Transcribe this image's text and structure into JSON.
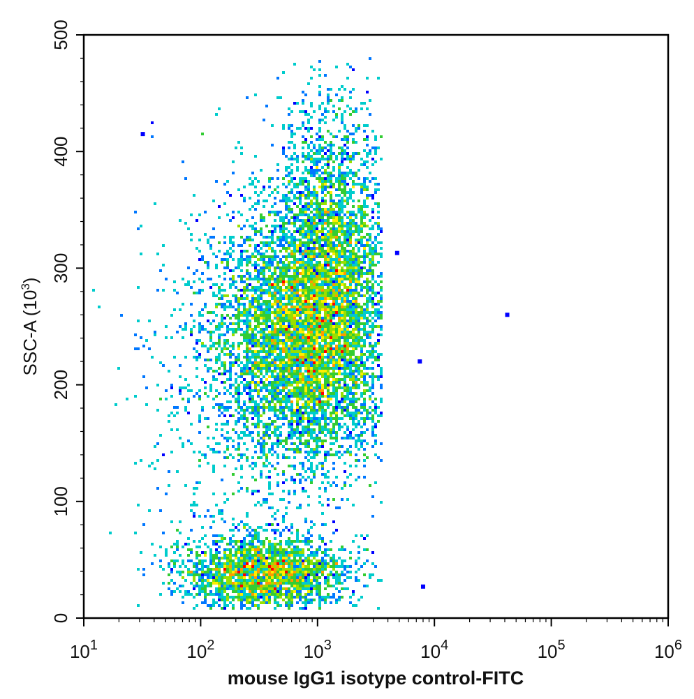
{
  "chart_data": {
    "type": "heatmap",
    "subtype": "flow-cytometry-density-dot-plot",
    "title": "",
    "xlabel": "mouse IgG1 isotype control-FITC",
    "ylabel": "SSC-A  (10",
    "ylabel_superscript": "3",
    "ylabel_suffix": ")",
    "x_scale": "log",
    "xlim": [
      10,
      1000000
    ],
    "x_ticks": [
      {
        "base": "10",
        "exp": "1",
        "value": 10
      },
      {
        "base": "10",
        "exp": "2",
        "value": 100
      },
      {
        "base": "10",
        "exp": "3",
        "value": 1000
      },
      {
        "base": "10",
        "exp": "4",
        "value": 10000
      },
      {
        "base": "10",
        "exp": "5",
        "value": 100000
      },
      {
        "base": "10",
        "exp": "6",
        "value": 1000000
      }
    ],
    "y_scale": "linear",
    "ylim": [
      0,
      500
    ],
    "y_ticks": [
      "0",
      "100",
      "200",
      "300",
      "400",
      "500"
    ],
    "grid": false,
    "legend": "none",
    "colormap": [
      "#0000ff",
      "#0077ff",
      "#00cccc",
      "#33cc33",
      "#99e000",
      "#ffee00",
      "#ff9900",
      "#ff0000"
    ],
    "populations": [
      {
        "x_center": 800,
        "y_center": 240,
        "x_log_sd": 0.38,
        "y_sd": 55,
        "weight": 0.55
      },
      {
        "x_center": 1300,
        "y_center": 330,
        "x_log_sd": 0.22,
        "y_sd": 60,
        "weight": 0.18
      },
      {
        "x_center": 350,
        "y_center": 38,
        "x_log_sd": 0.35,
        "y_sd": 16,
        "weight": 0.22
      },
      {
        "x_center": 180,
        "y_center": 200,
        "x_log_sd": 0.45,
        "y_sd": 90,
        "weight": 0.05
      }
    ],
    "isolated_events": [
      {
        "x": 8000,
        "y": 27
      },
      {
        "x": 42000,
        "y": 260
      },
      {
        "x": 32,
        "y": 415
      },
      {
        "x": 4800,
        "y": 313
      },
      {
        "x": 7500,
        "y": 220
      }
    ]
  }
}
